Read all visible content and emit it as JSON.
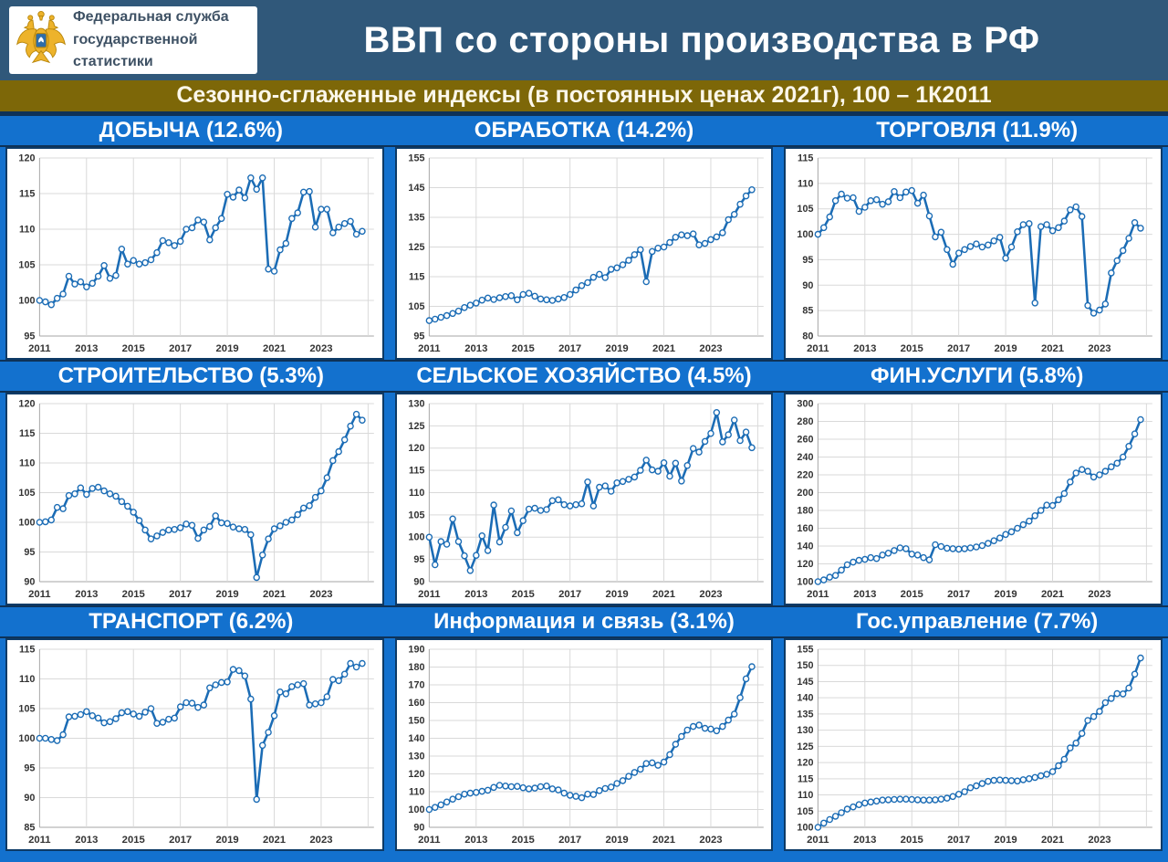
{
  "header": {
    "logo_line1": "Федеральная служба",
    "logo_line2": "государственной статистики",
    "title": "ВВП со стороны производства в РФ"
  },
  "subtitle": {
    "text": "Сезонно-сглаженные индексы (в постоянных ценах 2021г), 100 – 1К2011"
  },
  "icons": {
    "logo_emblem": "rosstat-eagle-icon"
  },
  "colors": {
    "header_bg": "#30587A",
    "subtitle_bg": "#7D6708",
    "page_bg": "#1371CE",
    "separator": "#0E3257",
    "line": "#1B6CB5",
    "marker_fill": "#FFFFFF",
    "grid": "#D9D9D9",
    "axis": "#A6A6A6",
    "tick_text": "#333333",
    "title_text": "#FFFFFF"
  },
  "chart_data": {
    "type": "line",
    "start_year": 2011,
    "points_per_year": 4,
    "x_tick_labels": [
      "2011",
      "2013",
      "2015",
      "2017",
      "2019",
      "2021",
      "2023"
    ],
    "grid": true,
    "legend": "none",
    "charts": [
      {
        "title": "ДОБЫЧА (12.6%)",
        "ylim": [
          95,
          120
        ],
        "y_step": 5,
        "values": [
          100.0,
          99.8,
          99.4,
          100.3,
          100.9,
          103.4,
          102.3,
          102.6,
          101.9,
          102.4,
          103.4,
          104.9,
          103.1,
          103.5,
          107.2,
          105.1,
          105.6,
          105.1,
          105.3,
          105.7,
          106.7,
          108.4,
          108.1,
          107.7,
          108.3,
          110.0,
          110.2,
          111.3,
          111.0,
          108.5,
          110.2,
          111.5,
          114.9,
          114.5,
          115.5,
          114.4,
          117.2,
          115.6,
          117.2,
          104.4,
          104.1,
          107.1,
          108.0,
          111.5,
          112.3,
          115.2,
          115.3,
          110.3,
          112.8,
          112.8,
          109.5,
          110.3,
          110.8,
          111.1,
          109.3,
          109.7
        ]
      },
      {
        "title": "ОБРАБОТКА (14.2%)",
        "ylim": [
          95,
          155
        ],
        "y_step": 10,
        "values": [
          100.2,
          100.7,
          101.3,
          101.9,
          102.6,
          103.4,
          104.6,
          105.4,
          106.1,
          107.1,
          107.8,
          107.3,
          107.9,
          108.3,
          108.6,
          107.2,
          109.0,
          109.4,
          108.4,
          107.5,
          107.2,
          107.0,
          107.5,
          108.0,
          109.0,
          110.5,
          112.0,
          113.0,
          114.8,
          115.8,
          114.7,
          117.5,
          118.0,
          119.0,
          120.5,
          122.4,
          124.1,
          113.3,
          123.5,
          124.6,
          125.0,
          126.5,
          128.3,
          129.1,
          128.8,
          129.4,
          125.7,
          126.2,
          127.5,
          128.4,
          129.8,
          134.2,
          136.0,
          139.4,
          142.2,
          144.3
        ]
      },
      {
        "title": "ТОРГОВЛЯ (11.9%)",
        "ylim": [
          80,
          115
        ],
        "y_step": 5,
        "values": [
          100.0,
          101.3,
          103.4,
          106.6,
          107.9,
          107.1,
          107.2,
          104.5,
          105.3,
          106.6,
          106.8,
          105.9,
          106.4,
          108.4,
          107.2,
          108.3,
          108.6,
          106.1,
          107.7,
          103.6,
          99.5,
          100.4,
          97.0,
          94.1,
          96.3,
          97.0,
          97.6,
          98.1,
          97.5,
          97.9,
          98.7,
          99.4,
          95.3,
          97.5,
          100.5,
          101.9,
          102.1,
          86.5,
          101.5,
          101.9,
          100.7,
          101.3,
          102.6,
          104.8,
          105.4,
          103.5,
          86.0,
          84.5,
          85.1,
          86.3,
          92.4,
          94.8,
          96.8,
          99.2,
          102.3,
          101.2
        ]
      },
      {
        "title": "СТРОИТЕЛЬСТВО (5.3%)",
        "ylim": [
          90,
          120
        ],
        "y_step": 5,
        "values": [
          100.0,
          100.1,
          100.4,
          102.5,
          102.3,
          104.5,
          104.8,
          105.8,
          104.7,
          105.7,
          105.9,
          105.3,
          104.8,
          104.4,
          103.5,
          102.7,
          101.7,
          100.3,
          98.7,
          97.2,
          97.7,
          98.3,
          98.7,
          98.8,
          99.1,
          99.7,
          99.5,
          97.3,
          98.7,
          99.3,
          101.1,
          99.9,
          99.8,
          99.2,
          98.9,
          98.8,
          97.9,
          90.7,
          94.5,
          97.2,
          98.9,
          99.4,
          100.0,
          100.4,
          101.3,
          102.4,
          102.8,
          104.2,
          105.3,
          107.5,
          110.4,
          111.9,
          113.9,
          116.2,
          118.2,
          117.2
        ]
      },
      {
        "title": "СЕЛЬСКОЕ ХОЗЯЙСТВО (4.5%)",
        "ylim": [
          90,
          130
        ],
        "y_step": 5,
        "values": [
          100.0,
          93.8,
          99.0,
          98.4,
          104.1,
          99.0,
          95.8,
          92.5,
          95.9,
          100.3,
          97.0,
          107.2,
          98.9,
          102.2,
          105.9,
          101.0,
          103.7,
          106.3,
          106.5,
          106.0,
          106.2,
          108.2,
          108.4,
          107.3,
          107.0,
          107.3,
          107.5,
          112.4,
          107.0,
          111.2,
          111.5,
          110.3,
          112.2,
          112.5,
          113.0,
          113.5,
          115.0,
          117.3,
          115.1,
          114.8,
          116.7,
          113.7,
          116.6,
          112.6,
          116.1,
          119.9,
          119.1,
          121.5,
          123.3,
          128.0,
          121.4,
          123.0,
          126.3,
          121.7,
          123.6,
          120.1
        ]
      },
      {
        "title": "ФИН.УСЛУГИ (5.8%)",
        "ylim": [
          100,
          300
        ],
        "y_step": 20,
        "values": [
          100,
          102,
          105,
          107,
          113,
          119,
          122,
          124,
          125,
          127,
          126,
          130,
          132,
          135,
          138,
          137,
          131,
          130,
          127,
          124.5,
          141.5,
          139.5,
          137.5,
          137,
          136.5,
          137,
          138,
          139,
          140.5,
          143,
          146,
          149,
          153,
          156,
          160,
          164,
          168,
          174,
          180,
          186,
          185.5,
          192,
          199,
          212,
          222,
          226,
          224,
          217.5,
          220,
          224,
          229,
          233,
          240,
          252,
          266,
          282
        ]
      },
      {
        "title": "ТРАНСПОРТ (6.2%)",
        "ylim": [
          85,
          115
        ],
        "y_step": 5,
        "values": [
          100.0,
          100.0,
          99.8,
          99.6,
          100.6,
          103.6,
          103.7,
          104.0,
          104.5,
          103.8,
          103.4,
          102.6,
          102.8,
          103.3,
          104.3,
          104.5,
          104.1,
          103.7,
          104.4,
          105.0,
          102.5,
          102.7,
          103.2,
          103.4,
          105.3,
          106.0,
          105.9,
          105.2,
          105.6,
          108.5,
          109.0,
          109.4,
          109.5,
          111.6,
          111.4,
          110.5,
          106.6,
          89.7,
          98.8,
          101.0,
          103.8,
          107.8,
          107.5,
          108.7,
          109.0,
          109.2,
          105.6,
          105.8,
          106.0,
          107.0,
          109.9,
          109.7,
          110.8,
          112.6,
          112.0,
          112.6
        ]
      },
      {
        "title": "Информация и связь (3.1%)",
        "ylim": [
          90,
          190
        ],
        "y_step": 10,
        "values": [
          100.0,
          101.2,
          102.6,
          104.2,
          105.8,
          107.2,
          108.6,
          109.2,
          109.6,
          110.2,
          110.8,
          112.4,
          113.6,
          113.2,
          112.8,
          113.0,
          112.2,
          111.6,
          112.0,
          112.8,
          113.2,
          111.6,
          111.0,
          109.2,
          108.0,
          107.4,
          106.6,
          108.6,
          108.4,
          110.6,
          111.8,
          112.6,
          114.6,
          116.2,
          118.6,
          120.8,
          122.6,
          125.8,
          126.2,
          124.8,
          126.6,
          130.8,
          136.6,
          141.0,
          144.6,
          146.6,
          147.4,
          145.6,
          145.2,
          144.2,
          146.6,
          150.2,
          153.6,
          162.8,
          173.4,
          180.2
        ]
      },
      {
        "title": "Гос.управление (7.7%)",
        "ylim": [
          100,
          155
        ],
        "y_step": 5,
        "values": [
          100.0,
          101.3,
          102.4,
          103.4,
          104.5,
          105.6,
          106.3,
          107.0,
          107.5,
          107.8,
          108.1,
          108.4,
          108.5,
          108.6,
          108.7,
          108.7,
          108.6,
          108.5,
          108.4,
          108.4,
          108.5,
          108.7,
          109.0,
          109.5,
          110.2,
          111.0,
          112.2,
          112.8,
          113.5,
          114.2,
          114.5,
          114.6,
          114.5,
          114.4,
          114.3,
          114.7,
          115.0,
          115.4,
          115.9,
          116.4,
          117.2,
          119.0,
          121.0,
          124.5,
          126.0,
          129.0,
          133.0,
          134.2,
          135.8,
          138.5,
          139.8,
          141.3,
          141.2,
          143.0,
          147.3,
          152.3
        ]
      }
    ]
  }
}
